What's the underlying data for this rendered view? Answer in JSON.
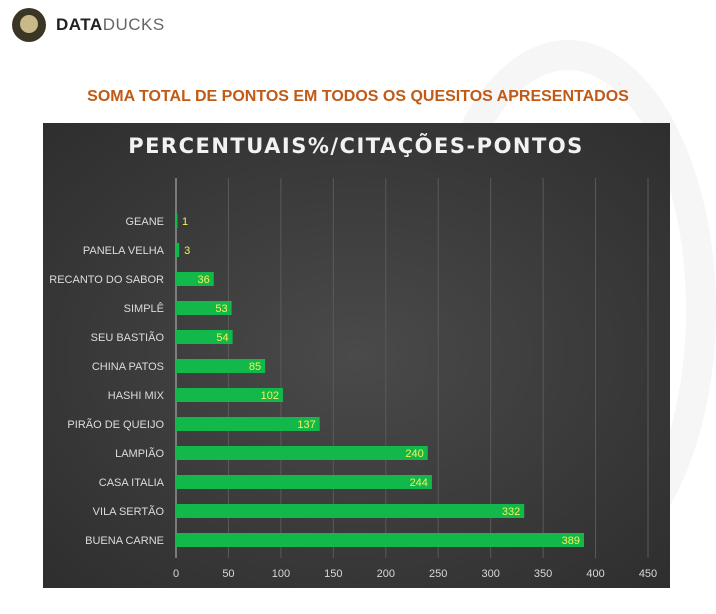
{
  "logo": {
    "brand_bold": "DATA",
    "brand_light": "DUCKS"
  },
  "heading": "SOMA TOTAL DE PONTOS EM TODOS OS QUESITOS APRESENTADOS",
  "chart_data": {
    "type": "bar",
    "orientation": "horizontal",
    "title": "PERCENTUAIS%/CITAÇÕES-PONTOS",
    "categories": [
      "GEANE",
      "PANELA VELHA",
      "RECANTO DO SABOR",
      "SIMPLÊ",
      "SEU BASTIÃO",
      "CHINA PATOS",
      "HASHI MIX",
      "PIRÃO DE QUEIJO",
      "LAMPIÃO",
      "CASA ITALIA",
      "VILA SERTÃO",
      "BUENA CARNE"
    ],
    "values": [
      1,
      3,
      36,
      53,
      54,
      85,
      102,
      137,
      240,
      244,
      332,
      389
    ],
    "xlim": [
      0,
      450
    ],
    "xticks": [
      0,
      50,
      100,
      150,
      200,
      250,
      300,
      350,
      400,
      450
    ],
    "grid": true,
    "bar_color": "#12b84a",
    "label_color": "#f2f25a"
  }
}
